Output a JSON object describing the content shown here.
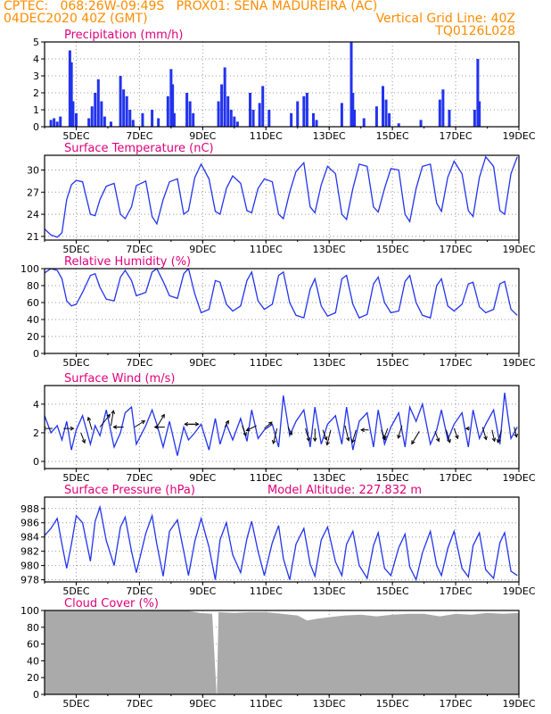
{
  "header": {
    "line1_left": "CPTEC:   068:26W-09:49S   PROX01: SENA MADUREIRA (AC)",
    "line2_left": "04DEC2020 40Z (GMT)",
    "line2_right": "Vertical Grid Line: 40Z",
    "line3_right": "TQ0126L028"
  },
  "x_tick_labels": [
    "5DEC",
    "7DEC",
    "9DEC",
    "11DEC",
    "13DEC",
    "15DEC",
    "17DEC",
    "19DEC"
  ],
  "x_tick_days": [
    5,
    7,
    9,
    11,
    13,
    15,
    17,
    19
  ],
  "x_range_days": [
    4,
    19
  ],
  "colors": {
    "header": "#ff8c00",
    "title": "#e0007a",
    "line": "#2233ee",
    "bar": "#2233ee",
    "cloud": "#aaaaaa",
    "grid": "#999999",
    "arrow": "#000000"
  },
  "chart_data": [
    {
      "type": "bar",
      "title": "Precipitation (mm/h)",
      "ylim": [
        0,
        5
      ],
      "yticks": [
        0,
        1,
        2,
        3,
        4,
        5
      ],
      "x": [
        4.2,
        4.3,
        4.4,
        4.5,
        4.8,
        4.85,
        4.9,
        5.0,
        5.4,
        5.5,
        5.6,
        5.7,
        5.8,
        5.9,
        6.1,
        6.4,
        6.5,
        6.6,
        6.7,
        6.8,
        7.1,
        7.4,
        7.6,
        7.9,
        8.0,
        8.05,
        8.1,
        8.5,
        8.6,
        8.7,
        9.5,
        9.6,
        9.7,
        9.8,
        9.9,
        10.0,
        10.1,
        10.5,
        10.6,
        10.8,
        10.9,
        11.1,
        11.8,
        12.0,
        12.2,
        12.3,
        12.5,
        12.6,
        13.4,
        13.7,
        13.75,
        13.8,
        14.1,
        14.5,
        14.7,
        14.8,
        14.9,
        15.2,
        15.9,
        16.5,
        16.6,
        16.8,
        17.6,
        17.7,
        17.75
      ],
      "values": [
        0.4,
        0.5,
        0.3,
        0.6,
        4.5,
        3.8,
        1.5,
        0.8,
        0.5,
        1.2,
        2.0,
        2.8,
        1.5,
        0.6,
        0.3,
        3.0,
        2.2,
        1.8,
        1.0,
        0.4,
        0.8,
        1.0,
        0.5,
        1.8,
        3.4,
        2.5,
        0.8,
        2.0,
        1.5,
        0.8,
        1.5,
        2.5,
        3.5,
        1.8,
        1.0,
        0.6,
        0.3,
        2.0,
        1.0,
        1.4,
        2.4,
        1.0,
        0.8,
        1.5,
        1.8,
        2.0,
        0.8,
        0.4,
        1.4,
        5.0,
        2.0,
        1.0,
        0.5,
        1.2,
        2.4,
        1.6,
        0.8,
        0.2,
        0.4,
        1.6,
        2.2,
        1.0,
        1.0,
        4.0,
        1.5
      ]
    },
    {
      "type": "line",
      "title": "Surface Temperature (nC)",
      "ylim": [
        20.5,
        32
      ],
      "yticks": [
        21,
        24,
        27,
        30
      ],
      "x": [
        4.0,
        4.2,
        4.4,
        4.55,
        4.7,
        4.85,
        5.0,
        5.2,
        5.45,
        5.6,
        5.75,
        5.95,
        6.2,
        6.4,
        6.55,
        6.75,
        6.9,
        7.2,
        7.4,
        7.55,
        7.75,
        7.95,
        8.2,
        8.4,
        8.55,
        8.75,
        8.95,
        9.2,
        9.4,
        9.55,
        9.75,
        9.95,
        10.2,
        10.4,
        10.55,
        10.75,
        10.95,
        11.2,
        11.4,
        11.55,
        11.75,
        11.95,
        12.2,
        12.4,
        12.55,
        12.75,
        12.95,
        13.2,
        13.4,
        13.55,
        13.75,
        13.95,
        14.2,
        14.4,
        14.55,
        14.75,
        14.95,
        15.2,
        15.4,
        15.55,
        15.75,
        15.95,
        16.2,
        16.4,
        16.55,
        16.75,
        16.95,
        17.2,
        17.4,
        17.55,
        17.75,
        17.95,
        18.2,
        18.4,
        18.55,
        18.75,
        18.95
      ],
      "values": [
        22.0,
        21.2,
        20.9,
        21.5,
        26.0,
        28.0,
        28.6,
        28.4,
        24.0,
        23.8,
        26.0,
        27.8,
        28.2,
        24.0,
        23.4,
        25.0,
        27.9,
        28.5,
        23.7,
        22.7,
        26.0,
        28.4,
        28.8,
        24.0,
        24.5,
        29.0,
        30.8,
        28.8,
        24.4,
        24.0,
        27.5,
        29.2,
        28.2,
        24.5,
        24.2,
        27.5,
        28.8,
        28.4,
        24.0,
        23.4,
        27.0,
        29.8,
        31.0,
        25.0,
        24.2,
        28.0,
        30.5,
        29.5,
        24.0,
        23.3,
        27.5,
        30.8,
        30.5,
        25.0,
        24.3,
        27.5,
        30.2,
        30.0,
        24.0,
        23.0,
        27.5,
        30.5,
        30.8,
        25.5,
        24.4,
        29.0,
        31.2,
        29.5,
        24.5,
        23.7,
        29.0,
        31.8,
        30.5,
        24.5,
        24.0,
        29.5,
        31.8
      ]
    },
    {
      "type": "line",
      "title": "Relative Humidity (%)",
      "ylim": [
        0,
        100
      ],
      "yticks": [
        0,
        20,
        40,
        60,
        80,
        100
      ],
      "x": [
        4.0,
        4.2,
        4.4,
        4.55,
        4.7,
        4.85,
        5.0,
        5.2,
        5.45,
        5.6,
        5.75,
        5.95,
        6.2,
        6.4,
        6.55,
        6.75,
        6.9,
        7.2,
        7.4,
        7.55,
        7.75,
        7.95,
        8.2,
        8.4,
        8.55,
        8.75,
        8.95,
        9.2,
        9.4,
        9.55,
        9.75,
        9.95,
        10.2,
        10.4,
        10.55,
        10.75,
        10.95,
        11.2,
        11.4,
        11.55,
        11.75,
        11.95,
        12.2,
        12.4,
        12.55,
        12.75,
        12.95,
        13.2,
        13.4,
        13.55,
        13.75,
        13.95,
        14.2,
        14.4,
        14.55,
        14.75,
        14.95,
        15.2,
        15.4,
        15.55,
        15.75,
        15.95,
        16.2,
        16.4,
        16.55,
        16.75,
        16.95,
        17.2,
        17.4,
        17.55,
        17.75,
        17.95,
        18.2,
        18.4,
        18.55,
        18.75,
        18.95
      ],
      "values": [
        95.0,
        100.0,
        98.0,
        88.0,
        62.0,
        56.0,
        58.0,
        72.0,
        92.0,
        94.0,
        78.0,
        64.0,
        62.0,
        90.0,
        98.0,
        86.0,
        68.0,
        72.0,
        96.0,
        100.0,
        85.0,
        68.0,
        65.0,
        94.0,
        100.0,
        70.0,
        48.0,
        52.0,
        86.0,
        84.0,
        58.0,
        50.0,
        56.0,
        86.0,
        96.0,
        62.0,
        52.0,
        58.0,
        92.0,
        96.0,
        60.0,
        45.0,
        42.0,
        76.0,
        88.0,
        56.0,
        44.0,
        48.0,
        88.0,
        92.0,
        58.0,
        42.0,
        46.0,
        82.0,
        90.0,
        60.0,
        48.0,
        50.0,
        85.0,
        92.0,
        60.0,
        45.0,
        42.0,
        80.0,
        88.0,
        56.0,
        50.0,
        58.0,
        82.0,
        84.0,
        55.0,
        48.0,
        52.0,
        82.0,
        85.0,
        52.0,
        45.0
      ]
    },
    {
      "type": "line",
      "title": "Surface Wind (m/s)",
      "ylim": [
        -0.5,
        5.3
      ],
      "yticks": [
        0,
        2,
        4
      ],
      "x": [
        4.0,
        4.2,
        4.4,
        4.55,
        4.7,
        4.85,
        5.0,
        5.2,
        5.45,
        5.6,
        5.75,
        5.95,
        6.2,
        6.4,
        6.55,
        6.75,
        6.9,
        7.2,
        7.4,
        7.55,
        7.75,
        7.95,
        8.2,
        8.4,
        8.55,
        8.75,
        8.95,
        9.2,
        9.4,
        9.55,
        9.75,
        9.95,
        10.2,
        10.4,
        10.55,
        10.75,
        10.95,
        11.2,
        11.4,
        11.55,
        11.75,
        11.95,
        12.2,
        12.4,
        12.55,
        12.75,
        12.95,
        13.2,
        13.4,
        13.55,
        13.75,
        13.95,
        14.2,
        14.4,
        14.55,
        14.75,
        14.95,
        15.2,
        15.4,
        15.55,
        15.75,
        15.95,
        16.2,
        16.4,
        16.55,
        16.75,
        16.95,
        17.2,
        17.4,
        17.55,
        17.75,
        17.95,
        18.2,
        18.4,
        18.55,
        18.75,
        18.95
      ],
      "values": [
        3.2,
        2.0,
        2.5,
        1.5,
        2.8,
        0.8,
        2.2,
        3.2,
        1.2,
        2.5,
        1.8,
        3.6,
        1.0,
        2.0,
        3.4,
        3.8,
        1.2,
        2.5,
        3.6,
        2.6,
        1.0,
        2.8,
        0.4,
        2.4,
        1.5,
        2.0,
        2.6,
        0.8,
        3.0,
        1.2,
        2.6,
        1.5,
        3.0,
        1.4,
        3.6,
        1.6,
        2.2,
        2.6,
        1.0,
        4.6,
        1.8,
        2.8,
        3.6,
        1.0,
        3.8,
        1.2,
        2.6,
        3.2,
        1.2,
        3.8,
        0.8,
        2.8,
        3.4,
        1.0,
        3.6,
        1.2,
        2.4,
        3.4,
        1.0,
        3.8,
        2.8,
        4.0,
        1.2,
        2.2,
        3.6,
        1.5,
        2.6,
        3.4,
        1.0,
        3.6,
        1.6,
        2.6,
        3.6,
        1.2,
        4.8,
        1.6,
        2.4
      ]
    },
    {
      "type": "line",
      "title": "Surface Pressure (hPa)",
      "annotation": "Model Altitude: 227.832 m",
      "ylim": [
        977.7,
        989.6
      ],
      "yticks": [
        978,
        980,
        982,
        984,
        986,
        988
      ],
      "x": [
        4.0,
        4.2,
        4.4,
        4.55,
        4.7,
        4.85,
        5.0,
        5.2,
        5.45,
        5.6,
        5.75,
        5.95,
        6.2,
        6.4,
        6.55,
        6.75,
        6.9,
        7.2,
        7.4,
        7.55,
        7.75,
        7.95,
        8.2,
        8.4,
        8.55,
        8.75,
        8.95,
        9.2,
        9.4,
        9.55,
        9.75,
        9.95,
        10.2,
        10.4,
        10.55,
        10.75,
        10.95,
        11.2,
        11.4,
        11.55,
        11.75,
        11.95,
        12.2,
        12.4,
        12.55,
        12.75,
        12.95,
        13.2,
        13.4,
        13.55,
        13.75,
        13.95,
        14.2,
        14.4,
        14.55,
        14.75,
        14.95,
        15.2,
        15.4,
        15.55,
        15.75,
        15.95,
        16.2,
        16.4,
        16.55,
        16.75,
        16.95,
        17.2,
        17.4,
        17.55,
        17.75,
        17.95,
        18.2,
        18.4,
        18.55,
        18.75,
        18.95
      ],
      "values": [
        984.2,
        985.2,
        986.6,
        983.0,
        979.6,
        983.0,
        987.0,
        986.0,
        980.6,
        986.2,
        988.2,
        983.5,
        980.0,
        985.4,
        986.8,
        982.0,
        979.0,
        984.5,
        987.0,
        983.0,
        978.5,
        984.8,
        986.4,
        982.0,
        978.6,
        983.4,
        986.6,
        982.6,
        978.0,
        983.6,
        986.0,
        981.5,
        979.0,
        983.8,
        986.2,
        982.0,
        978.6,
        983.2,
        985.6,
        981.0,
        978.0,
        983.0,
        985.2,
        980.2,
        978.5,
        983.6,
        985.4,
        980.5,
        978.6,
        983.0,
        984.8,
        980.0,
        978.2,
        982.8,
        984.6,
        979.6,
        978.6,
        982.5,
        984.4,
        979.8,
        978.0,
        981.8,
        984.8,
        980.0,
        978.6,
        982.4,
        984.8,
        979.6,
        978.4,
        982.8,
        984.6,
        979.4,
        978.2,
        983.2,
        984.6,
        979.2,
        978.6
      ]
    },
    {
      "type": "area",
      "title": "Cloud Cover (%)",
      "ylim": [
        0,
        100
      ],
      "yticks": [
        0,
        20,
        40,
        60,
        80,
        100
      ],
      "x": [
        4.0,
        4.5,
        5.0,
        5.5,
        6.0,
        6.5,
        7.0,
        7.5,
        8.0,
        8.5,
        8.9,
        9.3,
        9.44,
        9.45,
        9.5,
        10.0,
        10.5,
        11.0,
        11.5,
        12.0,
        12.3,
        12.6,
        13.0,
        13.5,
        14.0,
        14.5,
        15.0,
        15.5,
        16.0,
        16.5,
        17.0,
        17.5,
        18.0,
        18.5,
        19.0
      ],
      "values": [
        100,
        100,
        100,
        100,
        100,
        100,
        100,
        100,
        100,
        100,
        97,
        96,
        0,
        0,
        98,
        97,
        98,
        98,
        96,
        94,
        88,
        90,
        92,
        94,
        95,
        93,
        95,
        96,
        96,
        93,
        96,
        95,
        97,
        96,
        97
      ]
    }
  ],
  "wind_barbs": {
    "x": [
      4.25,
      4.6,
      5.15,
      5.5,
      5.75,
      6.1,
      6.5,
      6.85,
      7.55,
      7.8,
      8.55,
      8.75,
      9.7,
      10.25,
      10.7,
      10.95,
      11.35,
      11.7,
      12.25,
      12.55,
      12.8,
      13.05,
      13.5,
      13.85,
      14.25,
      14.65,
      14.85,
      15.3,
      15.85,
      16.35,
      16.7,
      16.95,
      17.45,
      17.85,
      18.15,
      18.45,
      18.85
    ],
    "y": [
      2.3,
      2.3,
      2.0,
      2.2,
      2.4,
      2.5,
      2.4,
      2.4,
      2.4,
      2.4,
      2.6,
      2.6,
      2.4,
      2.5,
      2.5,
      2.3,
      2.3,
      2.4,
      2.3,
      2.3,
      2.2,
      2.2,
      2.5,
      2.2,
      2.2,
      2.2,
      2.3,
      2.5,
      2.1,
      2.1,
      2.2,
      2.3,
      2.3,
      2.4,
      2.2,
      2.2,
      2.4
    ],
    "u": [
      -0.8,
      0.8,
      0.3,
      -0.3,
      0.8,
      0.2,
      -0.8,
      0.8,
      0.6,
      -0.8,
      0.8,
      -0.8,
      0.3,
      0.3,
      -0.8,
      0.6,
      -0.3,
      0.3,
      0.3,
      0.0,
      0.3,
      -0.3,
      0.3,
      -0.3,
      -0.6,
      0.3,
      -0.3,
      -0.3,
      -0.6,
      0.3,
      0.3,
      0.3,
      -0.3,
      0.3,
      0.2,
      -0.3,
      0.2
    ],
    "v": [
      0.0,
      0.0,
      -0.8,
      1.0,
      1.0,
      1.2,
      0.0,
      0.5,
      1.0,
      0.0,
      0.0,
      0.0,
      0.5,
      -0.8,
      -0.4,
      0.5,
      -1.2,
      -0.6,
      -1.0,
      -1.0,
      -0.8,
      -1.2,
      -1.2,
      -1.0,
      0.0,
      -0.8,
      -0.8,
      -1.0,
      -1.0,
      -0.8,
      -1.0,
      -0.8,
      0.0,
      -1.0,
      -0.9,
      -1.0,
      -0.8
    ]
  }
}
